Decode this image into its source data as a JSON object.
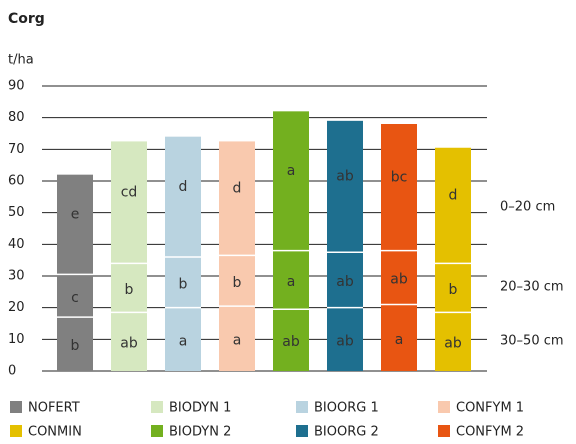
{
  "chart_data": {
    "type": "stacked-bar",
    "title": "Corg",
    "y_label": "t/ha",
    "categories": [
      "NOFERT",
      "BIODYN 1",
      "BIOORG 1",
      "CONFYM 1",
      "BIODYN 2",
      "BIOORG 2",
      "CONFYM 2",
      "CONMIN"
    ],
    "colors": [
      "#808080",
      "#d6e8c0",
      "#b9d3e0",
      "#f9c9ae",
      "#73b01f",
      "#1e6f8f",
      "#e85512",
      "#e4c000"
    ],
    "series": [
      {
        "name": "30–50 cm",
        "values": [
          17,
          18.5,
          20,
          20.5,
          19.5,
          20,
          21,
          18.5
        ],
        "labels": [
          "b",
          "ab",
          "a",
          "a",
          "ab",
          "ab",
          "a",
          "ab"
        ]
      },
      {
        "name": "20–30 cm",
        "values": [
          13.5,
          15.5,
          16,
          16,
          18.5,
          17.5,
          17,
          15.5
        ],
        "labels": [
          "c",
          "b",
          "b",
          "b",
          "a",
          "ab",
          "ab",
          "b"
        ]
      },
      {
        "name": "0–20 cm",
        "values": [
          31.5,
          38.5,
          38,
          36,
          44,
          41.5,
          40,
          36.5
        ],
        "labels": [
          "e",
          "cd",
          "d",
          "d",
          "a",
          "ab",
          "bc",
          "d"
        ]
      }
    ],
    "ylim": [
      0,
      90
    ],
    "yticks": [
      0,
      10,
      20,
      30,
      40,
      50,
      60,
      70,
      80,
      90
    ],
    "grid": true
  }
}
